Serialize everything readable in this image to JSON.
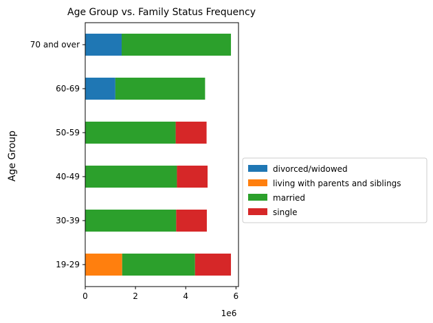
{
  "chart_data": {
    "type": "bar",
    "orientation": "horizontal",
    "stacked": true,
    "title": "Age Group vs. Family Status Frequency",
    "xlabel": "",
    "ylabel": "Age Group",
    "x_offset_label": "1e6",
    "xlim": [
      0,
      6.1
    ],
    "xticks": [
      "0",
      "2",
      "4",
      "6"
    ],
    "categories": [
      "19-29",
      "30-39",
      "40-49",
      "50-59",
      "60-69",
      "70 and over"
    ],
    "series": [
      {
        "name": "divorced/widowed",
        "color": "#1f77b4",
        "values": [
          0,
          0,
          0,
          0,
          1.2,
          1.45
        ]
      },
      {
        "name": "living with parents and siblings",
        "color": "#ff7f0e",
        "values": [
          1.47,
          0,
          0,
          0,
          0,
          0
        ]
      },
      {
        "name": "married",
        "color": "#2ca02c",
        "values": [
          2.9,
          3.62,
          3.65,
          3.6,
          3.57,
          4.35
        ]
      },
      {
        "name": "single",
        "color": "#d62728",
        "values": [
          1.43,
          1.22,
          1.22,
          1.23,
          0,
          0
        ]
      }
    ],
    "grid": false,
    "legend_position": "center-right"
  }
}
